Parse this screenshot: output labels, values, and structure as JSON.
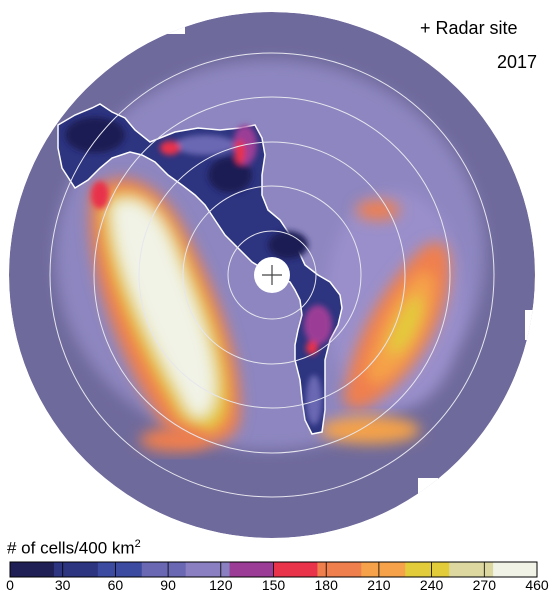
{
  "legend": {
    "title": "# of cells/400 km",
    "title_superscript": "2",
    "tick_labels": [
      "0",
      "30",
      "60",
      "90",
      "120",
      "150",
      "180",
      "210",
      "240",
      "270",
      "460"
    ],
    "colors": [
      "#1f1f55",
      "#2d3480",
      "#3c4aa0",
      "#6a67b3",
      "#8a7fc0",
      "#9b3d96",
      "#e8334b",
      "#f07f4e",
      "#f5a24a",
      "#e2cc3a",
      "#dcd8a0",
      "#f1f3e6"
    ]
  },
  "annotation": {
    "marker": "+",
    "label": "Radar site",
    "year": "2017"
  }
}
